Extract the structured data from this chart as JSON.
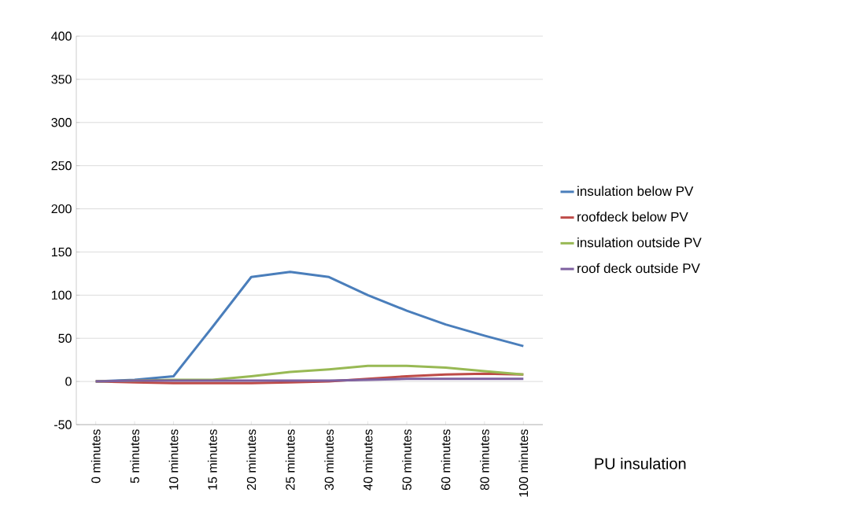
{
  "chart_data": {
    "type": "line",
    "categories": [
      "0 minutes",
      "5 minutes",
      "10 minutes",
      "15 minutes",
      "20 minutes",
      "25 minutes",
      "30 minutes",
      "40 minutes",
      "50 minutes",
      "60 minutes",
      "80 minutes",
      "100 minutes"
    ],
    "series": [
      {
        "name": "insulation below PV",
        "color": "#4a7ebb",
        "values": [
          0,
          2,
          6,
          63,
          121,
          127,
          121,
          100,
          82,
          66,
          53,
          41
        ]
      },
      {
        "name": "roofdeck below PV",
        "color": "#be4b48",
        "values": [
          0,
          -1,
          -2,
          -2,
          -2,
          -1,
          0,
          3,
          6,
          8,
          9,
          8
        ]
      },
      {
        "name": "insulation outside PV",
        "color": "#98b954",
        "values": [
          0,
          1,
          2,
          2,
          6,
          11,
          14,
          18,
          18,
          16,
          12,
          8
        ]
      },
      {
        "name": "roof deck outside PV",
        "color": "#7d60a0",
        "values": [
          0,
          1,
          1,
          1,
          1,
          1,
          1,
          2,
          3,
          3,
          3,
          3
        ]
      }
    ],
    "ylim": [
      -50,
      400
    ],
    "yticks": [
      -50,
      0,
      50,
      100,
      150,
      200,
      250,
      300,
      350,
      400
    ],
    "grid": "y",
    "legend": "right",
    "annotations": [
      "PU insulation"
    ]
  }
}
